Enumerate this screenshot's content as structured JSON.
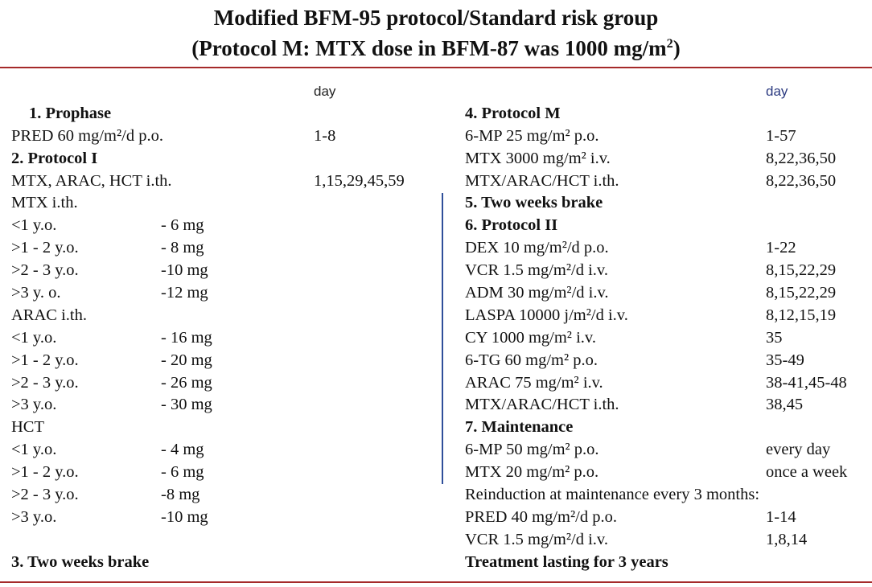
{
  "title": {
    "line1": "Modified BFM-95 protocol/Standard risk group",
    "line2_before": "(Protocol M: MTX dose in BFM-87 was 1000 mg/m",
    "line2_sup": "2",
    "line2_after": ")"
  },
  "left": {
    "day_header": "day",
    "rows": [
      {
        "type": "hdr",
        "label": "1. Prophase",
        "indent": true
      },
      {
        "type": "row",
        "label": "PRED 60 mg/m²/d  p.o.",
        "day": "1-8"
      },
      {
        "type": "hdr",
        "label": "2. Protocol I"
      },
      {
        "type": "row",
        "label": "MTX, ARAC, HCT i.th.",
        "day": "1,15,29,45,59"
      },
      {
        "type": "row",
        "label": " MTX i.th."
      },
      {
        "type": "row",
        "label": "<1 y.o.",
        "dose": "- 6 mg"
      },
      {
        "type": "row",
        "label": ">1 - 2 y.o.",
        "dose": "- 8 mg"
      },
      {
        "type": "row",
        "label": ">2 - 3 y.o.",
        "dose": "-10 mg"
      },
      {
        "type": "row",
        "label": ">3 y. o.",
        "dose": "-12 mg"
      },
      {
        "type": "row",
        "label": "ARAC i.th."
      },
      {
        "type": "row",
        "label": "<1 y.o.",
        "dose": "- 16 mg"
      },
      {
        "type": "row",
        "label": ">1 - 2 y.o.",
        "dose": "- 20 mg"
      },
      {
        "type": "row",
        "label": ">2 - 3 y.o.",
        "dose": "- 26 mg"
      },
      {
        "type": "row",
        "label": ">3 y.o.",
        "dose": "- 30 mg"
      },
      {
        "type": "row",
        "label": "HCT"
      },
      {
        "type": "row",
        "label": "<1 y.o.",
        "dose": "- 4 mg"
      },
      {
        "type": "row",
        "label": ">1 - 2 y.o.",
        "dose": "- 6 mg"
      },
      {
        "type": "row",
        "label": ">2 - 3 y.o.",
        "dose": "-8 mg"
      },
      {
        "type": "row",
        "label": ">3 y.o.",
        "dose": "-10 mg"
      },
      {
        "type": "blank",
        "label": ""
      },
      {
        "type": "hdr",
        "label": "3. Two weeks brake"
      }
    ]
  },
  "right": {
    "day_header": "day",
    "rows": [
      {
        "type": "hdr",
        "label": "4. Protocol M"
      },
      {
        "type": "row",
        "label": "6-MP 25 mg/m² p.o.",
        "day": "1-57"
      },
      {
        "type": "row",
        "label": "MTX 3000 mg/m² i.v.",
        "day": "8,22,36,50"
      },
      {
        "type": "row",
        "label": "MTX/ARAC/HCT i.th.",
        "day": "8,22,36,50"
      },
      {
        "type": "hdr",
        "label": "5. Two weeks brake"
      },
      {
        "type": "hdr",
        "label": "6. Protocol II"
      },
      {
        "type": "row",
        "label": "DEX 10 mg/m²/d  p.o.",
        "day": "1-22"
      },
      {
        "type": "row",
        "label": "VCR  1.5 mg/m²/d  i.v.",
        "day": "8,15,22,29"
      },
      {
        "type": "row",
        "label": "ADM 30 mg/m²/d  i.v.",
        "day": "8,15,22,29"
      },
      {
        "type": "row",
        "label": "LASPA 10000 j/m²/d i.v.",
        "day": "8,12,15,19"
      },
      {
        "type": "row",
        "label": "CY  1000 mg/m² i.v.",
        "day": "35"
      },
      {
        "type": "row",
        "label": "6-TG 60 mg/m² p.o.",
        "day": "35-49"
      },
      {
        "type": "row",
        "label": "ARAC 75 mg/m² i.v.",
        "day": "38-41,45-48"
      },
      {
        "type": "row",
        "label": "MTX/ARAC/HCT i.th.",
        "day": "38,45"
      },
      {
        "type": "hdr",
        "label": "7. Maintenance"
      },
      {
        "type": "row",
        "label": "6-MP 50 mg/m² p.o.",
        "day": "every day"
      },
      {
        "type": "row",
        "label": "MTX 20 mg/m² p.o.",
        "day": "once a week"
      },
      {
        "type": "row",
        "label": "Reinduction at maintenance  every 3 months:"
      },
      {
        "type": "row",
        "label": "PRED 40 mg/m²/d p.o.",
        "day": "1-14"
      },
      {
        "type": "row",
        "label": "VCR  1.5 mg/m²/d  i.v.",
        "day": "1,8,14"
      },
      {
        "type": "hdr",
        "label": "Treatment lasting for 3 years"
      }
    ]
  },
  "colors": {
    "rule": "#a52a2a",
    "divider": "#2f4f9a",
    "right_day_header": "#2b3a80"
  }
}
